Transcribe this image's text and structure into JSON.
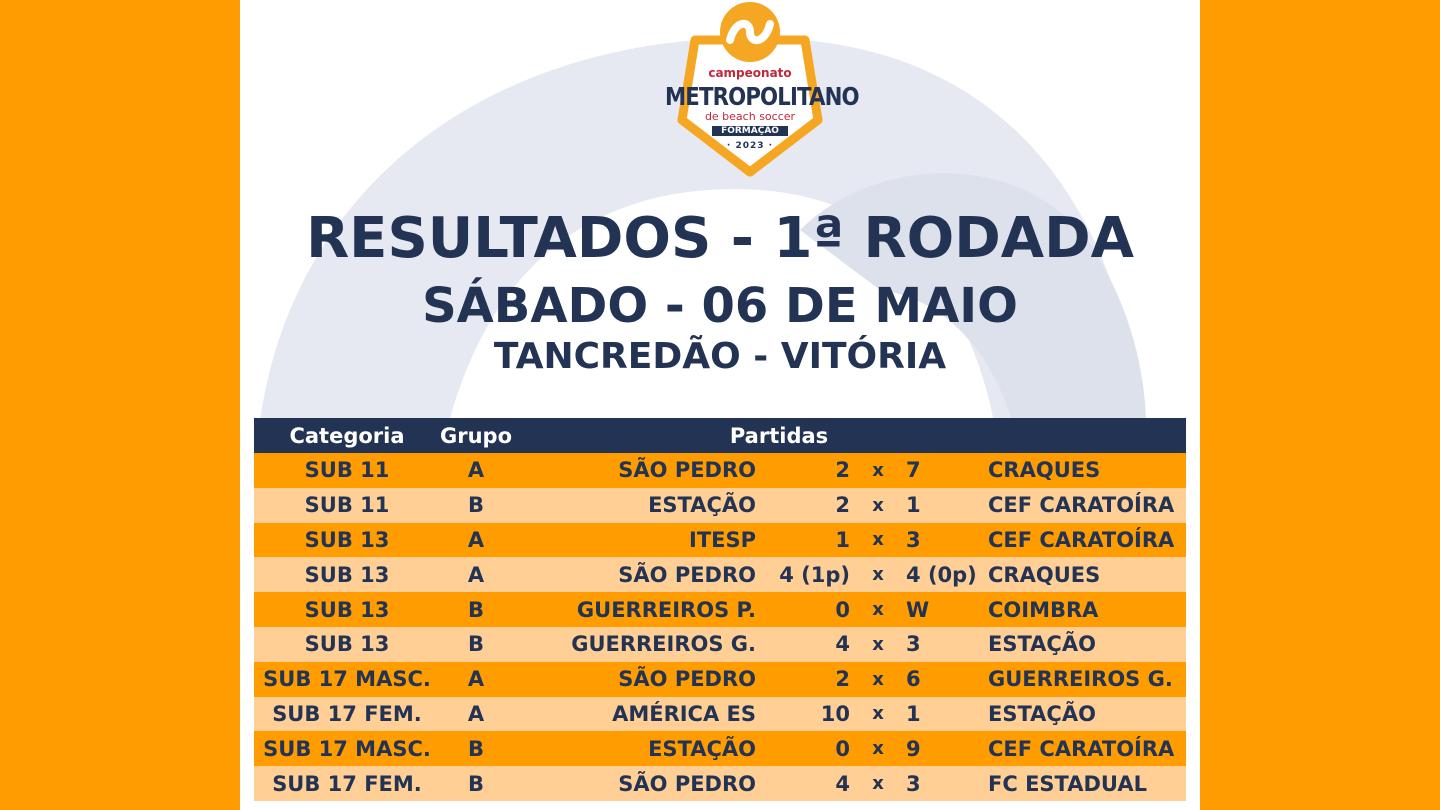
{
  "logo": {
    "line1": "campeonato",
    "line2": "METROPOLITANO",
    "line3": "de beach soccer",
    "line4": "FORMAÇÃO",
    "line5": "· 2023 ·"
  },
  "title": "RESULTADOS - 1ª RODADA",
  "date": "SÁBADO - 06 DE MAIO",
  "venue": "TANCREDÃO - VITÓRIA",
  "colors": {
    "orange": "#FF9C00",
    "light_orange": "#FFCF96",
    "navy": "#233354"
  },
  "table": {
    "headers": {
      "category": "Categoria",
      "group": "Grupo",
      "matches": "Partidas"
    },
    "rows": [
      {
        "category": "SUB 11",
        "group": "A",
        "home": "SÃO PEDRO",
        "home_score": "2",
        "sep": "x",
        "away_score": "7",
        "away": "CRAQUES"
      },
      {
        "category": "SUB 11",
        "group": "B",
        "home": "ESTAÇÃO",
        "home_score": "2",
        "sep": "x",
        "away_score": "1",
        "away": "CEF CARATOÍRA"
      },
      {
        "category": "SUB 13",
        "group": "A",
        "home": "ITESP",
        "home_score": "1",
        "sep": "x",
        "away_score": "3",
        "away": "CEF CARATOÍRA"
      },
      {
        "category": "SUB 13",
        "group": "A",
        "home": "SÃO PEDRO",
        "home_score": "4 (1p)",
        "sep": "x",
        "away_score": "4 (0p)",
        "away": "CRAQUES"
      },
      {
        "category": "SUB 13",
        "group": "B",
        "home": "GUERREIROS P.",
        "home_score": "0",
        "sep": "x",
        "away_score": "W",
        "away": "COIMBRA"
      },
      {
        "category": "SUB 13",
        "group": "B",
        "home": "GUERREIROS G.",
        "home_score": "4",
        "sep": "x",
        "away_score": "3",
        "away": "ESTAÇÃO"
      },
      {
        "category": "SUB 17 MASC.",
        "group": "A",
        "home": "SÃO PEDRO",
        "home_score": "2",
        "sep": "x",
        "away_score": "6",
        "away": "GUERREIROS G."
      },
      {
        "category": "SUB 17 FEM.",
        "group": "A",
        "home": "AMÉRICA ES",
        "home_score": "10",
        "sep": "x",
        "away_score": "1",
        "away": "ESTAÇÃO"
      },
      {
        "category": "SUB 17 MASC.",
        "group": "B",
        "home": "ESTAÇÃO",
        "home_score": "0",
        "sep": "x",
        "away_score": "9",
        "away": "CEF CARATOÍRA"
      },
      {
        "category": "SUB 17 FEM.",
        "group": "B",
        "home": "SÃO PEDRO",
        "home_score": "4",
        "sep": "x",
        "away_score": "3",
        "away": "FC ESTADUAL"
      }
    ]
  }
}
